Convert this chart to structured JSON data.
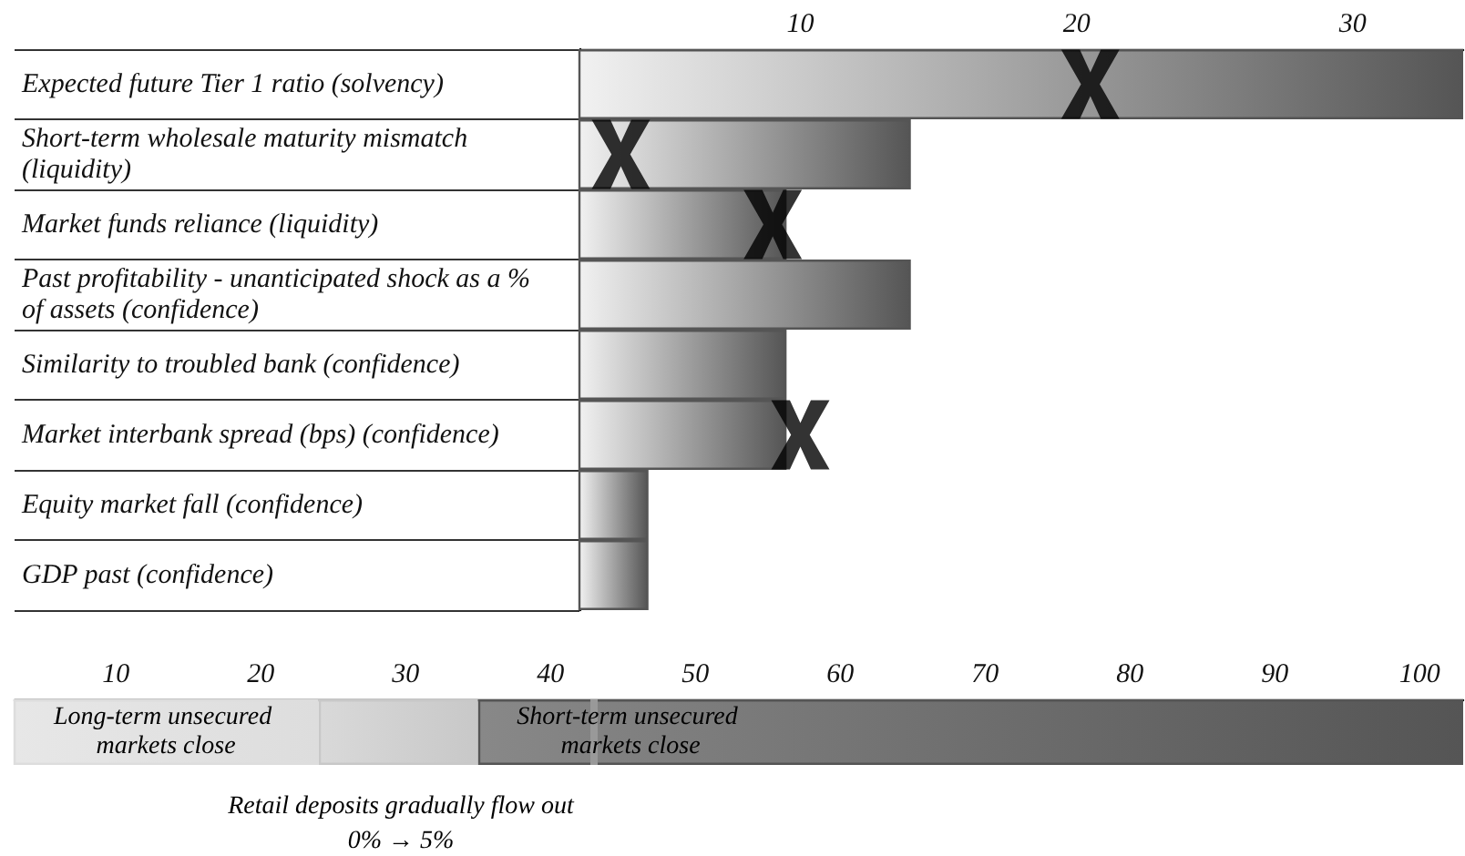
{
  "chart_data": [
    {
      "type": "bar",
      "orientation": "horizontal",
      "categories": [
        "Expected future Tier 1 ratio (solvency)",
        "Short-term wholesale maturity mismatch (liquidity)",
        "Market funds reliance (liquidity)",
        "Past profitability - unanticipated shock as a % of assets (confidence)",
        "Similarity to troubled bank (confidence)",
        "Market interbank spread (bps) (confidence)",
        "Equity market fall (confidence)",
        "GDP past (confidence)"
      ],
      "series": [
        {
          "color": "#555555",
          "values": [
            34,
            14,
            9.5,
            14,
            9.5,
            9.5,
            4.5,
            4.5
          ]
        },
        {
          "type": "scatter",
          "color": "#000000",
          "values": [
            20.5,
            3.5,
            9,
            null,
            null,
            10,
            null,
            null
          ]
        }
      ],
      "marker": "cross",
      "xlim": [
        2,
        34
      ],
      "xticks": [
        10,
        20,
        30
      ]
    },
    {
      "type": "bar",
      "orientation": "horizontal",
      "stacked": true,
      "categories": [
        null
      ],
      "series": [
        {
          "color": "#dddddd",
          "values": [
            24
          ]
        },
        {
          "color": "#c8c8c8",
          "values": [
            11
          ]
        },
        {
          "color": "#555555",
          "values": [
            68
          ]
        }
      ],
      "xlim": [
        3,
        103
      ],
      "xticks": [
        10,
        20,
        30,
        40,
        50,
        60,
        70,
        80,
        90,
        100
      ],
      "ref_lines": [
        {
          "axis": "x",
          "value": 43,
          "color": "#999999"
        }
      ],
      "annotations": [
        "Long-term unsecured markets close",
        "Short-term unsecured markets close",
        "Retail deposits gradually flow out",
        "0% → 5%"
      ]
    }
  ]
}
